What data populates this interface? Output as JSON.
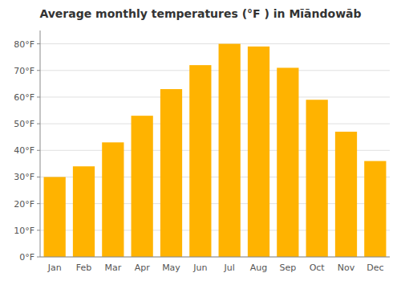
{
  "chart_data": {
    "type": "bar",
    "title": "Average monthly temperatures (°F ) in Mīāndowāb",
    "categories": [
      "Jan",
      "Feb",
      "Mar",
      "Apr",
      "May",
      "Jun",
      "Jul",
      "Aug",
      "Sep",
      "Oct",
      "Nov",
      "Dec"
    ],
    "values": [
      30,
      34,
      43,
      53,
      63,
      72,
      80,
      79,
      71,
      59,
      47,
      36
    ],
    "color": "#FFB300",
    "ylim": [
      0,
      85
    ],
    "yticks": [
      {
        "value": 0,
        "label": "0°F"
      },
      {
        "value": 10,
        "label": "10°F"
      },
      {
        "value": 20,
        "label": "20°F"
      },
      {
        "value": 30,
        "label": "30°F"
      },
      {
        "value": 40,
        "label": "40°F"
      },
      {
        "value": 50,
        "label": "50°F"
      },
      {
        "value": 60,
        "label": "60°F"
      },
      {
        "value": 70,
        "label": "70°F"
      },
      {
        "value": 80,
        "label": "80°F"
      }
    ],
    "grid": true
  }
}
